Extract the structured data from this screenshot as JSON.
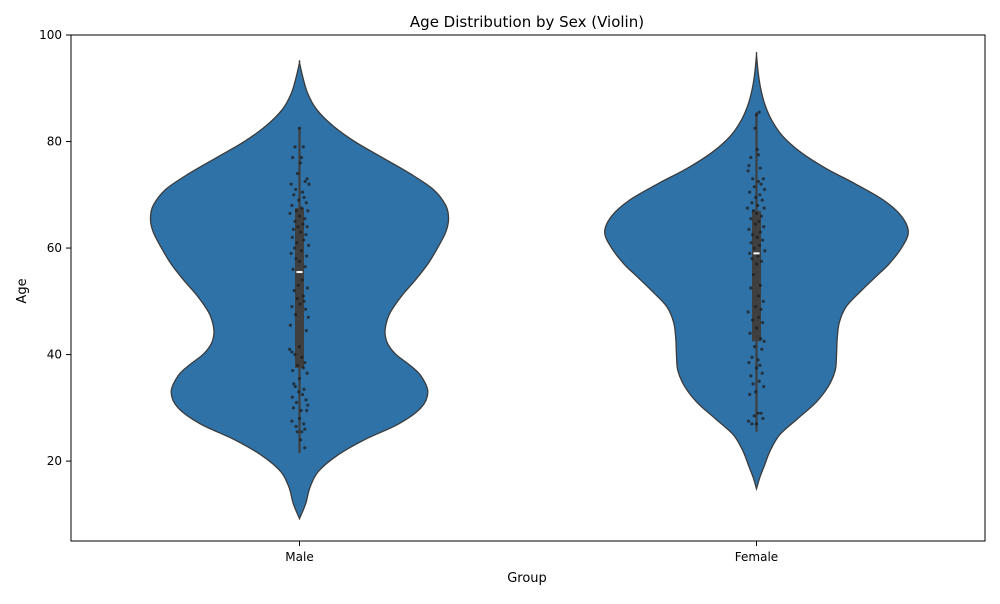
{
  "chart_data": {
    "type": "violin",
    "title": "Age Distribution by Sex (Violin)",
    "xlabel": "Group",
    "ylabel": "Age",
    "categories": [
      "Male",
      "Female"
    ],
    "ylim": [
      5,
      100
    ],
    "yticks": [
      20,
      40,
      60,
      80,
      100
    ],
    "grid": false,
    "colors": {
      "violin_fill": "#2f72a8",
      "violin_edge": "#3b3b3b",
      "box": "#3f3f3f",
      "median": "#ffffff",
      "points": "#1f1f1f"
    },
    "series": [
      {
        "category": "Male",
        "density": [
          [
            9.2,
            0.0
          ],
          [
            12,
            0.045
          ],
          [
            15,
            0.075
          ],
          [
            18,
            0.135
          ],
          [
            21,
            0.27
          ],
          [
            24,
            0.47
          ],
          [
            27,
            0.72
          ],
          [
            30,
            0.88
          ],
          [
            33,
            0.93
          ],
          [
            36,
            0.88
          ],
          [
            38,
            0.8
          ],
          [
            40,
            0.7
          ],
          [
            42,
            0.64
          ],
          [
            44,
            0.62
          ],
          [
            46,
            0.63
          ],
          [
            48,
            0.66
          ],
          [
            51,
            0.74
          ],
          [
            54,
            0.84
          ],
          [
            57,
            0.93
          ],
          [
            60,
            1.0
          ],
          [
            63,
            1.06
          ],
          [
            65.5,
            1.08
          ],
          [
            68,
            1.06
          ],
          [
            71,
            0.97
          ],
          [
            74,
            0.8
          ],
          [
            77,
            0.6
          ],
          [
            80,
            0.4
          ],
          [
            83,
            0.24
          ],
          [
            86,
            0.125
          ],
          [
            89,
            0.06
          ],
          [
            92,
            0.025
          ],
          [
            94.8,
            0.0
          ]
        ],
        "whisker": [
          21.5,
          82.5
        ],
        "box": [
          37.5,
          67.5
        ],
        "median": 55.5,
        "points": [
          [
            0.0,
            82.5
          ],
          [
            -0.12,
            79
          ],
          [
            0.1,
            79
          ],
          [
            0.05,
            77
          ],
          [
            -0.18,
            77
          ],
          [
            0.02,
            76
          ],
          [
            -0.05,
            74
          ],
          [
            0.2,
            73
          ],
          [
            0.15,
            72.5
          ],
          [
            -0.22,
            72
          ],
          [
            0.25,
            72
          ],
          [
            -0.1,
            71
          ],
          [
            0.08,
            70.5
          ],
          [
            -0.15,
            70
          ],
          [
            0.12,
            69.5
          ],
          [
            -0.02,
            69
          ],
          [
            0.18,
            68.5
          ],
          [
            -0.2,
            68
          ],
          [
            0.06,
            67.5
          ],
          [
            -0.08,
            67
          ],
          [
            0.22,
            67
          ],
          [
            -0.25,
            66.5
          ],
          [
            0.0,
            66
          ],
          [
            0.14,
            65.5
          ],
          [
            -0.12,
            65
          ],
          [
            0.09,
            64.5
          ],
          [
            -0.04,
            64
          ],
          [
            0.2,
            64
          ],
          [
            -0.16,
            63.5
          ],
          [
            0.03,
            63
          ],
          [
            0.17,
            62.5
          ],
          [
            -0.19,
            62
          ],
          [
            0.11,
            61.5
          ],
          [
            -0.07,
            61
          ],
          [
            0.24,
            60.5
          ],
          [
            -0.13,
            60
          ],
          [
            0.05,
            59.5
          ],
          [
            -0.22,
            59
          ],
          [
            0.19,
            58.5
          ],
          [
            -0.09,
            58
          ],
          [
            0.0,
            57.5
          ],
          [
            0.15,
            56.5
          ],
          [
            -0.17,
            56
          ],
          [
            0.07,
            54
          ],
          [
            -0.03,
            53
          ],
          [
            0.21,
            52.5
          ],
          [
            -0.14,
            52
          ],
          [
            0.1,
            51
          ],
          [
            -0.06,
            50.5
          ],
          [
            0.12,
            50
          ],
          [
            0.02,
            49.5
          ],
          [
            -0.2,
            49
          ],
          [
            0.16,
            48.5
          ],
          [
            -0.1,
            47.5
          ],
          [
            0.23,
            47
          ],
          [
            -0.24,
            45.5
          ],
          [
            0.18,
            44.5
          ],
          [
            0.0,
            41.5
          ],
          [
            -0.26,
            41
          ],
          [
            -0.2,
            40.5
          ],
          [
            -0.12,
            40
          ],
          [
            0.06,
            39.5
          ],
          [
            0.14,
            38.5
          ],
          [
            -0.05,
            38
          ],
          [
            0.1,
            37.5
          ],
          [
            -0.18,
            37
          ],
          [
            0.2,
            36.5
          ],
          [
            0.0,
            35.5
          ],
          [
            -0.15,
            34.5
          ],
          [
            -0.11,
            34
          ],
          [
            0.12,
            33.5
          ],
          [
            -0.02,
            33
          ],
          [
            0.08,
            32.5
          ],
          [
            -0.19,
            32
          ],
          [
            0.17,
            31.5
          ],
          [
            -0.08,
            31
          ],
          [
            0.22,
            30.5
          ],
          [
            -0.16,
            30
          ],
          [
            0.04,
            29.5
          ],
          [
            0.19,
            29.5
          ],
          [
            0.0,
            28
          ],
          [
            -0.2,
            27.5
          ],
          [
            0.11,
            27
          ],
          [
            -0.09,
            26.5
          ],
          [
            0.14,
            26
          ],
          [
            0.06,
            25.5
          ],
          [
            -0.06,
            25.5
          ],
          [
            0.03,
            24
          ],
          [
            0.14,
            22.5
          ]
        ]
      },
      {
        "category": "Female",
        "density": [
          [
            14.8,
            0.0
          ],
          [
            17,
            0.025
          ],
          [
            19,
            0.055
          ],
          [
            22,
            0.1
          ],
          [
            25,
            0.17
          ],
          [
            28,
            0.3
          ],
          [
            31,
            0.43
          ],
          [
            34,
            0.52
          ],
          [
            37,
            0.57
          ],
          [
            40,
            0.58
          ],
          [
            43,
            0.585
          ],
          [
            46,
            0.6
          ],
          [
            49,
            0.65
          ],
          [
            52,
            0.76
          ],
          [
            55,
            0.88
          ],
          [
            57,
            0.96
          ],
          [
            60,
            1.05
          ],
          [
            63,
            1.1
          ],
          [
            66,
            1.05
          ],
          [
            69,
            0.92
          ],
          [
            72,
            0.72
          ],
          [
            75,
            0.5
          ],
          [
            78,
            0.32
          ],
          [
            81,
            0.19
          ],
          [
            84,
            0.11
          ],
          [
            87,
            0.06
          ],
          [
            90,
            0.03
          ],
          [
            93,
            0.012
          ],
          [
            96.3,
            0.0
          ]
        ],
        "whisker": [
          25.5,
          85.5
        ],
        "box": [
          42.5,
          67
        ],
        "median": 59,
        "points": [
          [
            0.0,
            85
          ],
          [
            0.07,
            85.5
          ],
          [
            -0.04,
            82.5
          ],
          [
            0.02,
            78.5
          ],
          [
            0.05,
            77.5
          ],
          [
            -0.15,
            77
          ],
          [
            -0.2,
            75.5
          ],
          [
            0.1,
            75
          ],
          [
            -0.22,
            74.5
          ],
          [
            0.18,
            73
          ],
          [
            -0.1,
            73
          ],
          [
            0.05,
            72.5
          ],
          [
            0.12,
            72
          ],
          [
            -0.06,
            71.5
          ],
          [
            0.21,
            71
          ],
          [
            -0.18,
            70.5
          ],
          [
            0.09,
            70
          ],
          [
            -0.02,
            69.5
          ],
          [
            0.15,
            69
          ],
          [
            -0.12,
            68.5
          ],
          [
            0.03,
            68
          ],
          [
            -0.24,
            67.5
          ],
          [
            0.2,
            67.5
          ],
          [
            -0.08,
            67
          ],
          [
            0.0,
            66.5
          ],
          [
            0.13,
            66
          ],
          [
            -0.15,
            65.5
          ],
          [
            0.06,
            65
          ],
          [
            -0.03,
            64.5
          ],
          [
            0.19,
            64
          ],
          [
            -0.2,
            63.5
          ],
          [
            0.1,
            63
          ],
          [
            -0.1,
            62.5
          ],
          [
            0.02,
            62
          ],
          [
            0.16,
            61.5
          ],
          [
            -0.14,
            61
          ],
          [
            0.08,
            60.5
          ],
          [
            -0.06,
            60
          ],
          [
            0.22,
            59.5
          ],
          [
            -0.18,
            59
          ],
          [
            0.04,
            58.5
          ],
          [
            -0.12,
            58
          ],
          [
            0.13,
            57.5
          ],
          [
            0.0,
            57
          ],
          [
            -0.08,
            55
          ],
          [
            0.1,
            53
          ],
          [
            -0.15,
            52.5
          ],
          [
            0.05,
            51
          ],
          [
            0.18,
            50
          ],
          [
            -0.02,
            49
          ],
          [
            0.12,
            48.5
          ],
          [
            -0.22,
            48
          ],
          [
            0.06,
            47
          ],
          [
            -0.1,
            46.5
          ],
          [
            0.16,
            46
          ],
          [
            0.0,
            45
          ],
          [
            -0.17,
            44
          ],
          [
            0.11,
            43
          ],
          [
            0.2,
            42.5
          ],
          [
            -0.05,
            41.5
          ],
          [
            0.14,
            41
          ],
          [
            -0.12,
            39.5
          ],
          [
            0.04,
            39
          ],
          [
            -0.2,
            38.5
          ],
          [
            0.09,
            38
          ],
          [
            0.0,
            37.5
          ],
          [
            0.15,
            36.5
          ],
          [
            -0.15,
            36
          ],
          [
            0.07,
            35
          ],
          [
            -0.09,
            34.5
          ],
          [
            0.19,
            34
          ],
          [
            -0.02,
            33
          ],
          [
            -0.18,
            32.5
          ],
          [
            0.12,
            29
          ],
          [
            0.04,
            29
          ],
          [
            -0.06,
            28.5
          ],
          [
            0.17,
            28
          ],
          [
            -0.21,
            27.5
          ],
          [
            0.0,
            27
          ],
          [
            -0.12,
            27
          ]
        ]
      }
    ]
  }
}
